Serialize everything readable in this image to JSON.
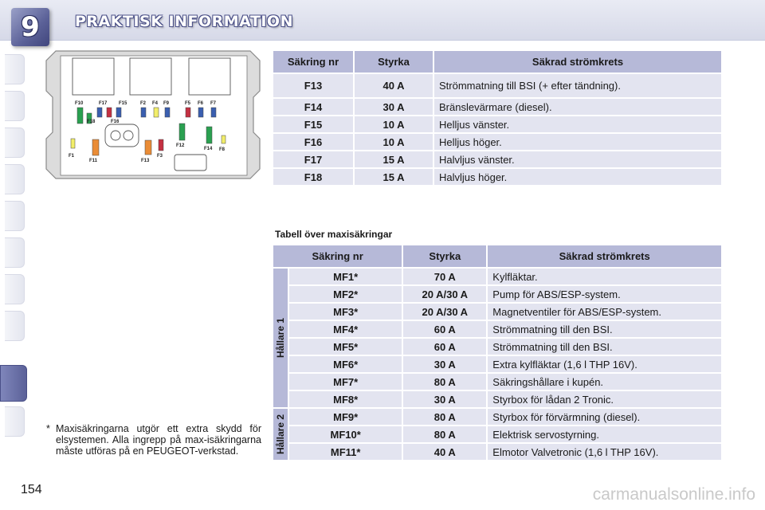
{
  "header": {
    "chapter_number": "9",
    "title": "PRAKTISK INFORMATION"
  },
  "fusebox": {
    "labels": {
      "F10": "F10",
      "F17": "F17",
      "F15": "F15",
      "F2": "F2",
      "F4": "F4",
      "F9": "F9",
      "F5": "F5",
      "F6": "F6",
      "F7": "F7",
      "F18": "F18",
      "F16": "F16",
      "F12": "F12",
      "F14": "F14",
      "F8": "F8",
      "F1": "F1",
      "F11": "F11",
      "F13": "F13",
      "F3": "F3"
    },
    "colors": {
      "green": "#2aa050",
      "blue": "#3a5fb0",
      "yellow": "#f2ee6a",
      "orange": "#ea8c36",
      "red": "#c43042",
      "frame": "#dcdcdc"
    }
  },
  "table1": {
    "headers": [
      "Säkring nr",
      "Styrka",
      "Säkrad strömkrets"
    ],
    "rows": [
      {
        "nr": "F13",
        "styrka": "40 A",
        "krets": "Strömmatning till BSI (+ efter tändning)."
      },
      {
        "nr": "F14",
        "styrka": "30 A",
        "krets": "Bränslevärmare (diesel)."
      },
      {
        "nr": "F15",
        "styrka": "10 A",
        "krets": "Helljus vänster."
      },
      {
        "nr": "F16",
        "styrka": "10 A",
        "krets": "Helljus höger."
      },
      {
        "nr": "F17",
        "styrka": "15 A",
        "krets": "Halvljus vänster."
      },
      {
        "nr": "F18",
        "styrka": "15 A",
        "krets": "Halvljus höger."
      }
    ]
  },
  "table2": {
    "caption": "Tabell över maxisäkringar",
    "headers": [
      "Säkring nr",
      "Styrka",
      "Säkrad strömkrets"
    ],
    "group1_label": "Hållare 1",
    "group2_label": "Hållare 2",
    "group1_rows": [
      {
        "nr": "MF1*",
        "styrka": "70 A",
        "krets": "Kylfläktar."
      },
      {
        "nr": "MF2*",
        "styrka": "20 A/30 A",
        "krets": "Pump för ABS/ESP-system."
      },
      {
        "nr": "MF3*",
        "styrka": "20 A/30 A",
        "krets": "Magnetventiler för ABS/ESP-system."
      },
      {
        "nr": "MF4*",
        "styrka": "60 A",
        "krets": "Strömmatning till den BSI."
      },
      {
        "nr": "MF5*",
        "styrka": "60 A",
        "krets": "Strömmatning till den BSI."
      },
      {
        "nr": "MF6*",
        "styrka": "30 A",
        "krets": "Extra kylfläktar (1,6 l THP 16V)."
      },
      {
        "nr": "MF7*",
        "styrka": "80 A",
        "krets": "Säkringshållare i kupén."
      },
      {
        "nr": "MF8*",
        "styrka": "30 A",
        "krets": "Styrbox för lådan 2 Tronic."
      }
    ],
    "group2_rows": [
      {
        "nr": "MF9*",
        "styrka": "80 A",
        "krets": "Styrbox för förvärmning (diesel)."
      },
      {
        "nr": "MF10*",
        "styrka": "80 A",
        "krets": "Elektrisk servostyrning."
      },
      {
        "nr": "MF11*",
        "styrka": "40 A",
        "krets": "Elmotor Valvetronic (1,6 l THP 16V)."
      }
    ]
  },
  "footnote": {
    "star": "*",
    "text": "Maxisäkringarna utgör ett extra skydd för elsystemen. Alla ingrepp på max-isäkringarna måste utföras på en PEUGEOT-verkstad."
  },
  "page_number": "154",
  "watermark": "carmanualsonline.info"
}
